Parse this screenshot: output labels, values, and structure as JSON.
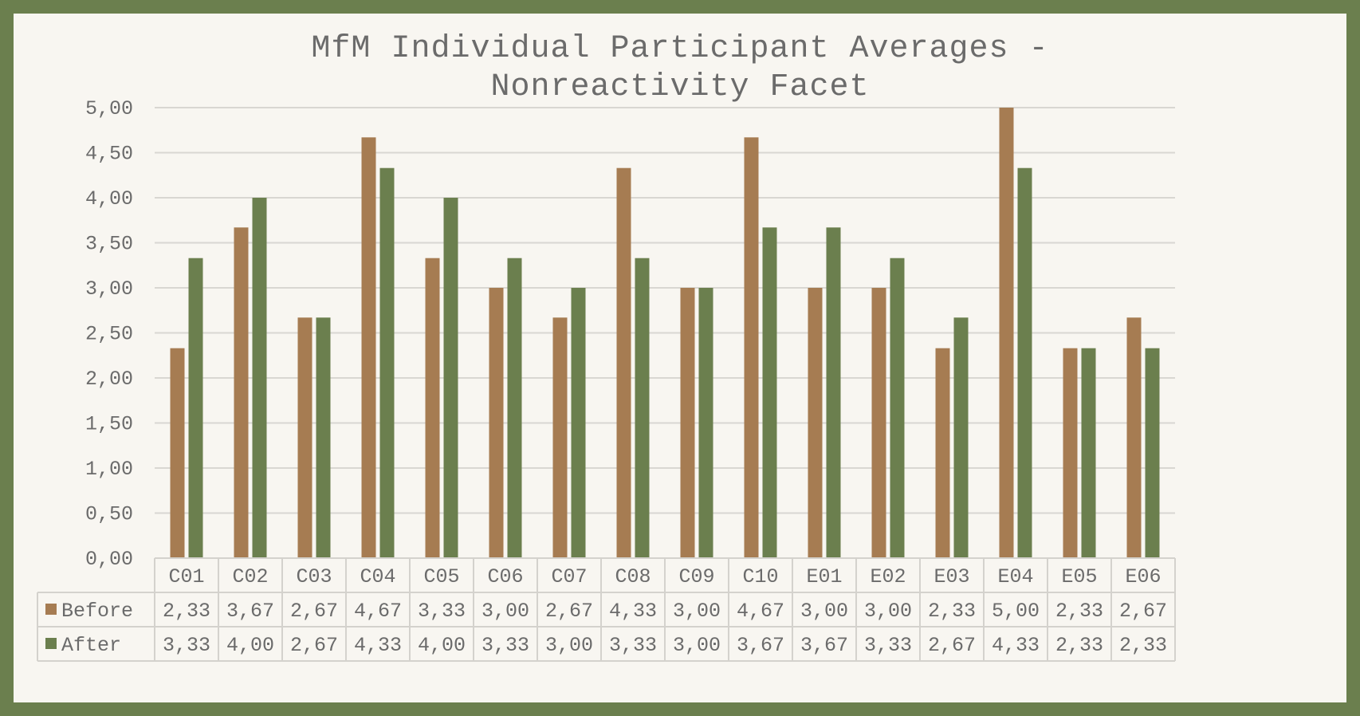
{
  "chart_data": {
    "type": "bar",
    "title": [
      "MfM Individual Participant Averages -",
      "Nonreactivity Facet"
    ],
    "categories": [
      "C01",
      "C02",
      "C03",
      "C04",
      "C05",
      "C06",
      "C07",
      "C08",
      "C09",
      "C10",
      "E01",
      "E02",
      "E03",
      "E04",
      "E05",
      "E06"
    ],
    "series": [
      {
        "name": "Before",
        "color": "#a67c52",
        "values": [
          2.33,
          3.67,
          2.67,
          4.67,
          3.33,
          3.0,
          2.67,
          4.33,
          3.0,
          4.67,
          3.0,
          3.0,
          2.33,
          5.0,
          2.33,
          2.67
        ],
        "labels": [
          "2,33",
          "3,67",
          "2,67",
          "4,67",
          "3,33",
          "3,00",
          "2,67",
          "4,33",
          "3,00",
          "4,67",
          "3,00",
          "3,00",
          "2,33",
          "5,00",
          "2,33",
          "2,67"
        ]
      },
      {
        "name": "After",
        "color": "#6b7f4e",
        "values": [
          3.33,
          4.0,
          2.67,
          4.33,
          4.0,
          3.33,
          3.0,
          3.33,
          3.0,
          3.67,
          3.67,
          3.33,
          2.67,
          4.33,
          2.33,
          2.33
        ],
        "labels": [
          "3,33",
          "4,00",
          "2,67",
          "4,33",
          "4,00",
          "3,33",
          "3,00",
          "3,33",
          "3,00",
          "3,67",
          "3,67",
          "3,33",
          "2,67",
          "4,33",
          "2,33",
          "2,33"
        ]
      }
    ],
    "y_ticks": [
      "0,00",
      "0,50",
      "1,00",
      "1,50",
      "2,00",
      "2,50",
      "3,00",
      "3,50",
      "4,00",
      "4,50",
      "5,00"
    ],
    "ylim": [
      0,
      5
    ],
    "grid": true,
    "legend": "data-table"
  },
  "colors": {
    "frame": "#6b7f4e",
    "background": "#f8f6f1",
    "text": "#6b6b6b",
    "grid": "#d9d7d2"
  }
}
